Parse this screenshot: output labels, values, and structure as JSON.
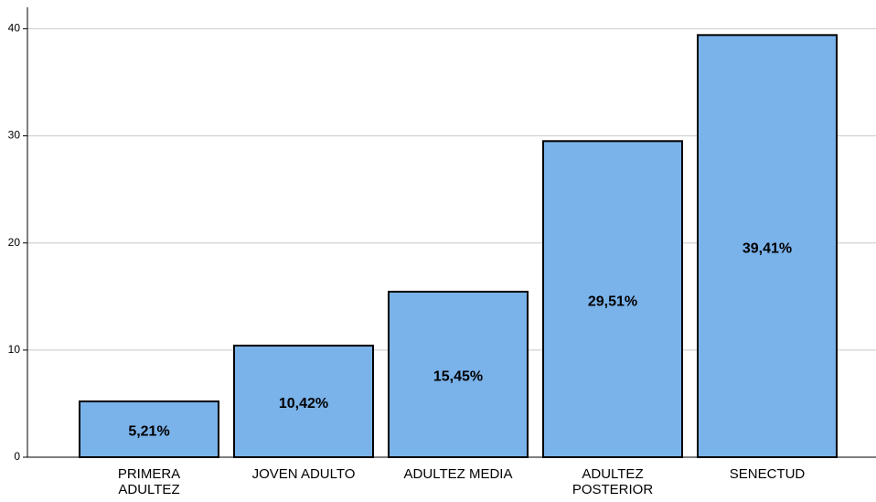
{
  "chart_data": {
    "type": "bar",
    "categories": [
      "PRIMERA\nADULTEZ",
      "JOVEN ADULTO",
      "ADULTEZ MEDIA",
      "ADULTEZ\nPOSTERIOR",
      "SENECTUD"
    ],
    "values": [
      5.21,
      10.42,
      15.45,
      29.51,
      39.41
    ],
    "value_labels": [
      "5,21%",
      "10,42%",
      "15,45%",
      "29,51%",
      "39,41%"
    ],
    "color": "#7ab2ea",
    "ylim": [
      0,
      42
    ],
    "yticks": [
      0,
      10,
      20,
      30,
      40
    ],
    "grid": true
  }
}
